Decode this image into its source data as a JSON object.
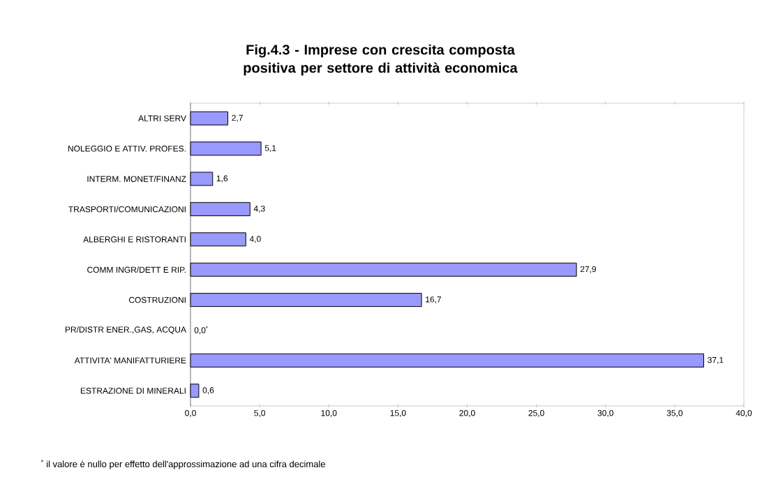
{
  "chart_data": {
    "type": "bar",
    "orientation": "horizontal",
    "title": "**Fig.4.3 - Imprese con crescita composta positiva per settore di attività economica**",
    "categories": [
      "ALTRI SERV",
      "NOLEGGIO E ATTIV. PROFES.",
      "INTERM. MONET/FINANZ",
      "TRASPORTI/COMUNICAZIONI",
      "ALBERGHI E RISTORANTI",
      "COMM INGR/DETT E RIP.",
      "COSTRUZIONI",
      "PR/DISTR ENER.,GAS, ACQUA",
      "ATTIVITA' MANIFATTURIERE",
      "ESTRAZIONE DI MINERALI"
    ],
    "values": [
      2.7,
      5.1,
      1.6,
      4.3,
      4.0,
      27.9,
      16.7,
      0.0,
      37.1,
      0.6
    ],
    "value_labels": [
      "2,7",
      "5,1",
      "1,6",
      "4,3",
      "4,0",
      "27,9",
      "16,7",
      "0,0$^{*}$",
      "37,1",
      "0,6"
    ],
    "color": "#9999ff",
    "xlim": [
      0,
      40
    ],
    "xticks": [
      {
        "value": 0,
        "label": "0,0"
      },
      {
        "value": 5,
        "label": "5,0"
      },
      {
        "value": 10,
        "label": "10,0"
      },
      {
        "value": 15,
        "label": "15,0"
      },
      {
        "value": 20,
        "label": "20,0"
      },
      {
        "value": 25,
        "label": "25,0"
      },
      {
        "value": 30,
        "label": "30,0"
      },
      {
        "value": 35,
        "label": "35,0"
      },
      {
        "value": 40,
        "label": "40,0"
      }
    ],
    "grid": false,
    "annotations": [
      "$^{*}$ il valore è nullo per effetto dell'approssimazione ad una cifra decimale"
    ]
  }
}
